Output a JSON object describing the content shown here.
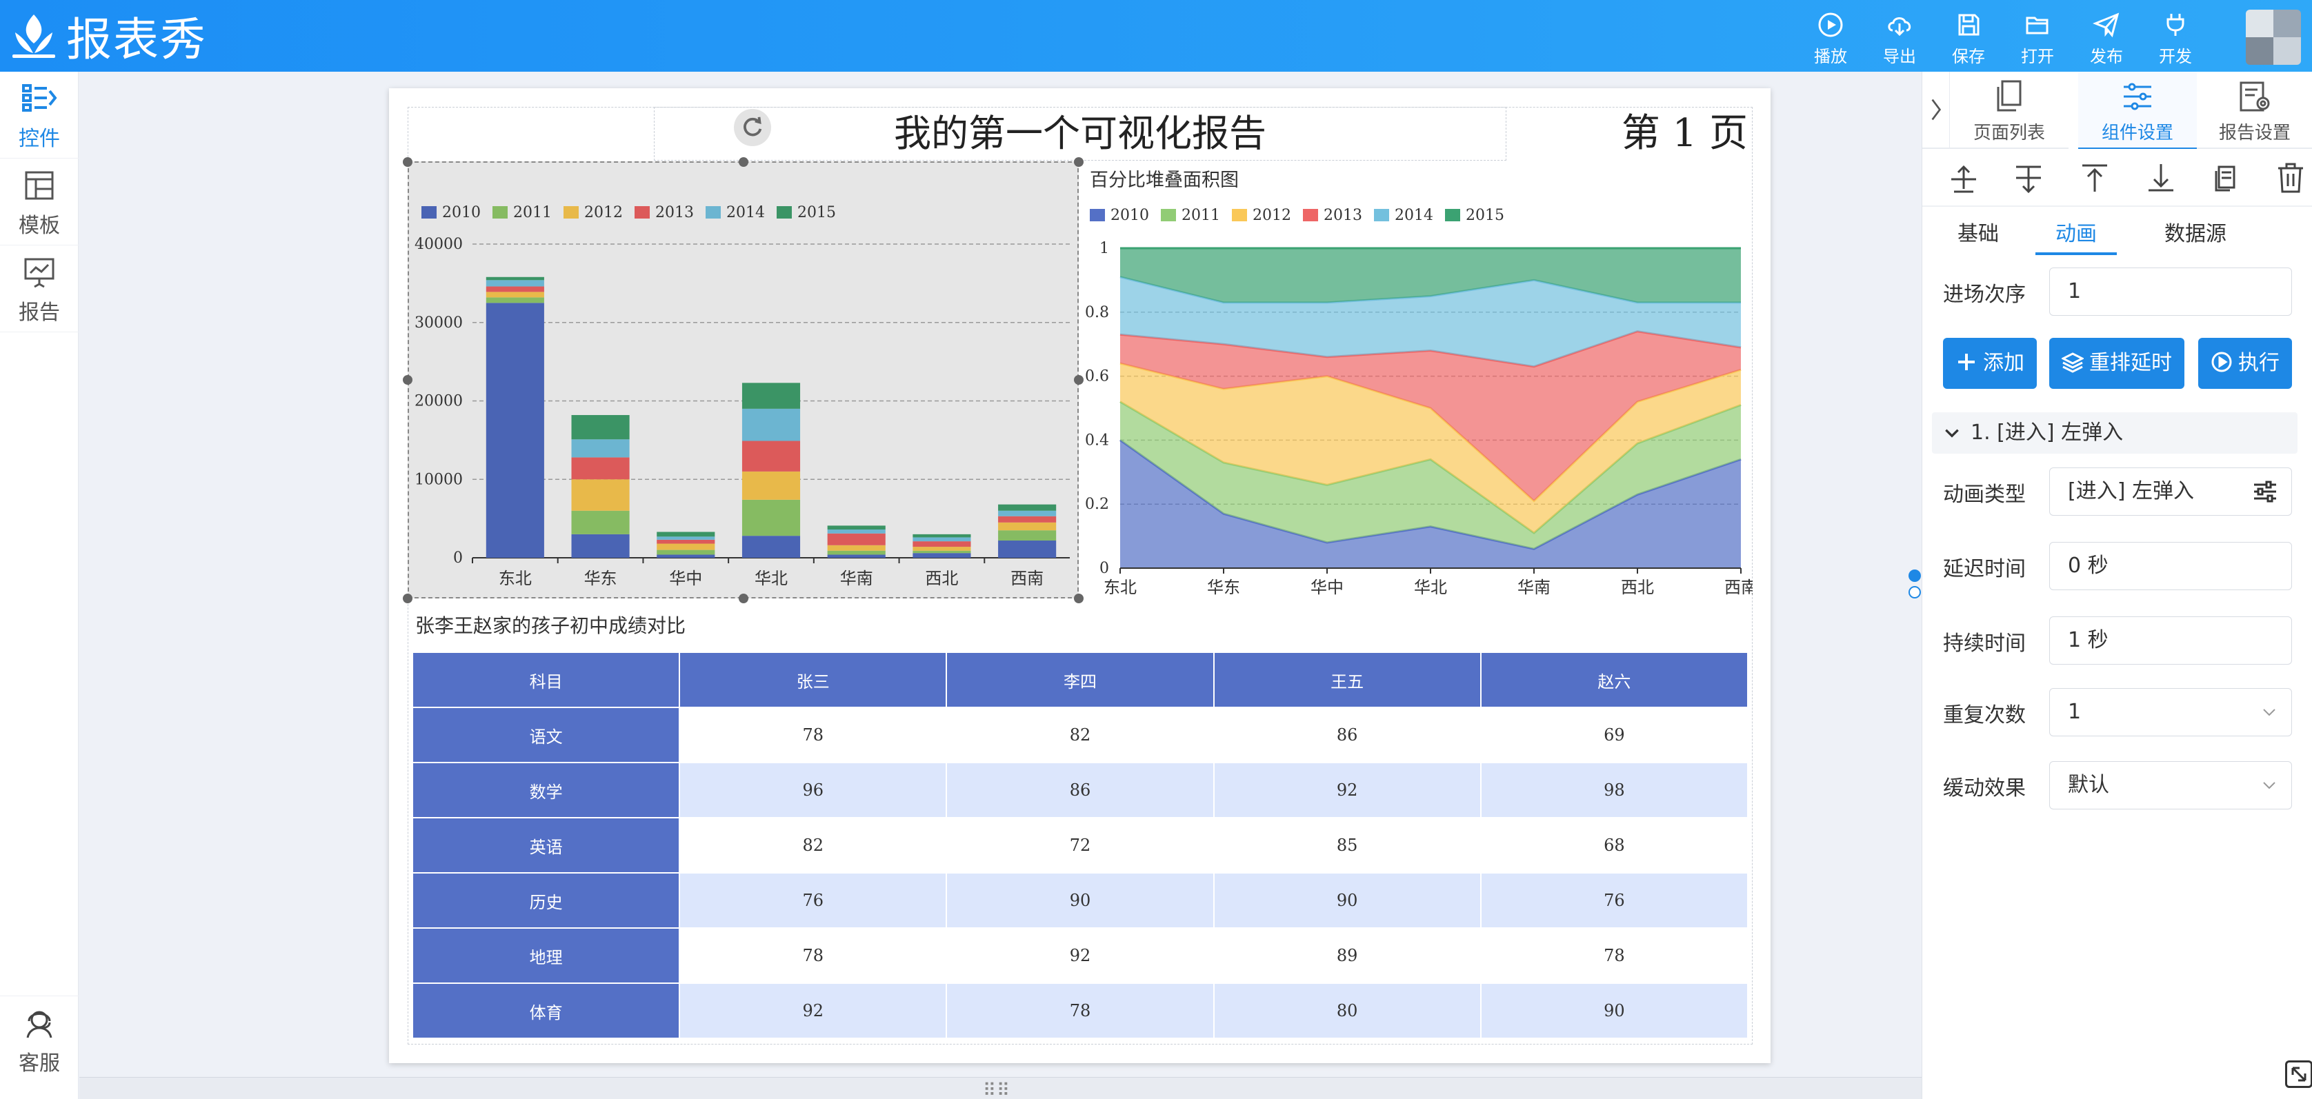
{
  "app": {
    "name": "报表秀"
  },
  "toolbar": [
    {
      "id": "play",
      "label": "播放",
      "icon": "play-icon"
    },
    {
      "id": "export",
      "label": "导出",
      "icon": "cloud-download-icon"
    },
    {
      "id": "save",
      "label": "保存",
      "icon": "save-icon"
    },
    {
      "id": "open",
      "label": "打开",
      "icon": "folder-open-icon"
    },
    {
      "id": "publish",
      "label": "发布",
      "icon": "send-icon"
    },
    {
      "id": "develop",
      "label": "开发",
      "icon": "plug-icon"
    }
  ],
  "leftnav": [
    {
      "id": "controls",
      "label": "控件",
      "icon": "widgets-icon",
      "active": true
    },
    {
      "id": "templates",
      "label": "模板",
      "icon": "template-icon",
      "active": false
    },
    {
      "id": "reports",
      "label": "报告",
      "icon": "presentation-icon",
      "active": false
    }
  ],
  "support": {
    "label": "客服",
    "icon": "customer-service-icon"
  },
  "report": {
    "title": "我的第一个可视化报告",
    "page_label": "第 1 页"
  },
  "chart_data": [
    {
      "type": "bar",
      "stacked": true,
      "title": "",
      "categories": [
        "东北",
        "华东",
        "华中",
        "华北",
        "华南",
        "西北",
        "西南"
      ],
      "series": [
        {
          "name": "2010",
          "color": "#4a64b4",
          "values": [
            32500,
            3000,
            400,
            2800,
            400,
            600,
            2200
          ]
        },
        {
          "name": "2011",
          "color": "#86bb62",
          "values": [
            700,
            3000,
            600,
            4600,
            500,
            300,
            1300
          ]
        },
        {
          "name": "2012",
          "color": "#e8b94a",
          "values": [
            700,
            4000,
            800,
            3600,
            700,
            500,
            1000
          ]
        },
        {
          "name": "2013",
          "color": "#dc5a5a",
          "values": [
            700,
            2800,
            500,
            3900,
            1500,
            700,
            800
          ]
        },
        {
          "name": "2014",
          "color": "#6cb5d1",
          "values": [
            800,
            2300,
            400,
            4100,
            500,
            500,
            700
          ]
        },
        {
          "name": "2015",
          "color": "#3b9465",
          "values": [
            400,
            3100,
            600,
            3300,
            500,
            400,
            800
          ]
        }
      ],
      "ylim": [
        0,
        40000
      ],
      "yticks": [
        0,
        10000,
        20000,
        30000,
        40000
      ],
      "grid": true,
      "legend_position": "top-left"
    },
    {
      "type": "area",
      "stacked": "percent",
      "title": "百分比堆叠面积图",
      "categories": [
        "东北",
        "华东",
        "华中",
        "华北",
        "华南",
        "西北",
        "西南"
      ],
      "series": [
        {
          "name": "2010",
          "color": "#5470c6",
          "values": [
            0.4,
            0.17,
            0.08,
            0.13,
            0.06,
            0.23,
            0.34
          ]
        },
        {
          "name": "2011",
          "color": "#91cc75",
          "values": [
            0.12,
            0.16,
            0.18,
            0.21,
            0.05,
            0.16,
            0.17
          ]
        },
        {
          "name": "2012",
          "color": "#fac858",
          "values": [
            0.12,
            0.23,
            0.34,
            0.16,
            0.1,
            0.13,
            0.11
          ]
        },
        {
          "name": "2013",
          "color": "#ee6666",
          "values": [
            0.09,
            0.14,
            0.06,
            0.18,
            0.42,
            0.22,
            0.07
          ]
        },
        {
          "name": "2014",
          "color": "#73c0de",
          "values": [
            0.18,
            0.13,
            0.17,
            0.17,
            0.27,
            0.09,
            0.14
          ]
        },
        {
          "name": "2015",
          "color": "#3ba272",
          "values": [
            0.09,
            0.17,
            0.17,
            0.15,
            0.1,
            0.17,
            0.17
          ]
        }
      ],
      "ylim": [
        0,
        1
      ],
      "yticks": [
        "0",
        "0.2",
        "0.4",
        "0.6",
        "0.8",
        "1"
      ],
      "grid": true,
      "legend_position": "top-left"
    }
  ],
  "table": {
    "title": "张李王赵家的孩子初中成绩对比",
    "headers": [
      "科目",
      "张三",
      "李四",
      "王五",
      "赵六"
    ],
    "rows": [
      [
        "语文",
        "78",
        "82",
        "86",
        "69"
      ],
      [
        "数学",
        "96",
        "86",
        "92",
        "98"
      ],
      [
        "英语",
        "82",
        "72",
        "85",
        "68"
      ],
      [
        "历史",
        "76",
        "90",
        "90",
        "76"
      ],
      [
        "地理",
        "78",
        "92",
        "89",
        "78"
      ],
      [
        "体育",
        "92",
        "78",
        "80",
        "90"
      ]
    ]
  },
  "rightpanel": {
    "tabs": [
      {
        "id": "pages",
        "label": "页面列表",
        "icon": "pages-icon",
        "active": false
      },
      {
        "id": "component",
        "label": "组件设置",
        "icon": "sliders-icon",
        "active": true
      },
      {
        "id": "report",
        "label": "报告设置",
        "icon": "report-settings-icon",
        "active": false
      }
    ],
    "tools": [
      "align-top-icon",
      "align-middle-icon",
      "bring-front-icon",
      "send-back-icon",
      "copy-icon",
      "delete-icon"
    ],
    "subtabs": [
      {
        "id": "basic",
        "label": "基础",
        "active": false
      },
      {
        "id": "animation",
        "label": "动画",
        "active": true
      },
      {
        "id": "datasource",
        "label": "数据源",
        "active": false
      }
    ],
    "order_label": "进场次序",
    "order_value": "1",
    "buttons": {
      "add": "添加",
      "reorder": "重排延时",
      "run": "执行"
    },
    "anim_item": "1. [进入] 左弹入",
    "fields": {
      "type_label": "动画类型",
      "type_value": "[进入] 左弹入",
      "delay_label": "延迟时间",
      "delay_value": "0 秒",
      "duration_label": "持续时间",
      "duration_value": "1 秒",
      "repeat_label": "重复次数",
      "repeat_value": "1",
      "easing_label": "缓动效果",
      "easing_value": "默认"
    }
  }
}
